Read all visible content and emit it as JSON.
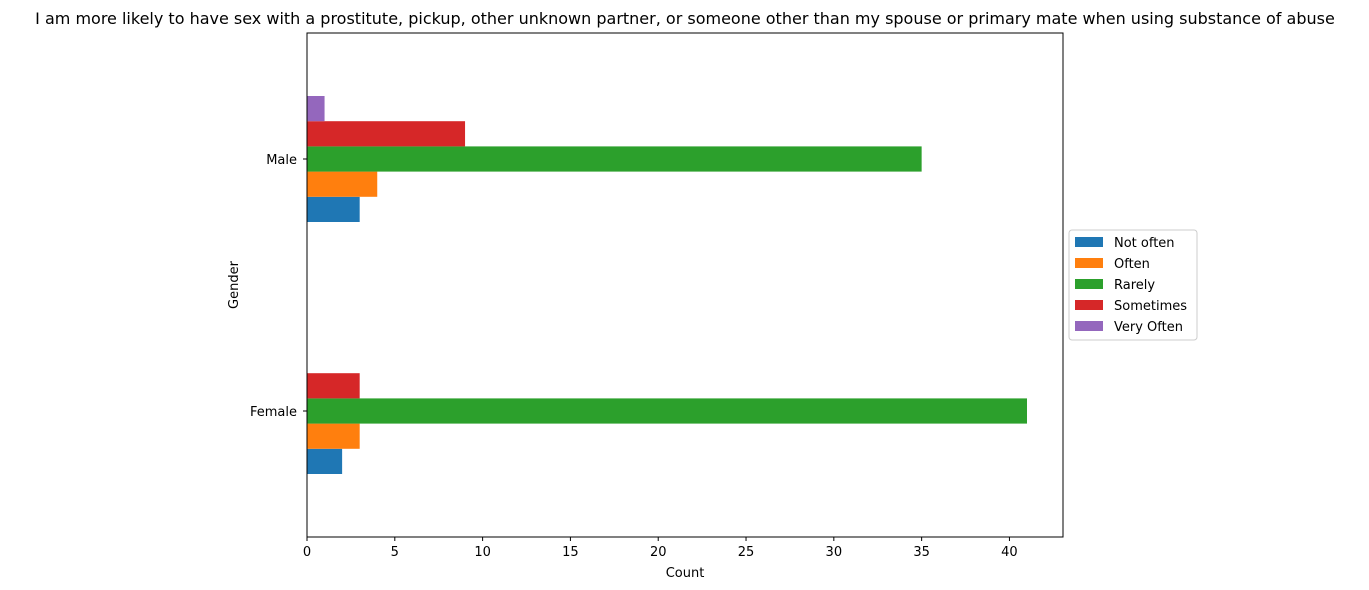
{
  "chart_data": {
    "type": "bar",
    "orientation": "horizontal",
    "title": "I am more likely to have sex with a prostitute, pickup, other unknown partner, or someone other than my spouse or primary mate when using substance of abuse",
    "xlabel": "Count",
    "ylabel": "Gender",
    "categories": [
      "Female",
      "Male"
    ],
    "xlim": [
      0,
      43.05
    ],
    "xticks": [
      0,
      5,
      10,
      15,
      20,
      25,
      30,
      35,
      40
    ],
    "grid": false,
    "legend_position": "center-right outside",
    "series": [
      {
        "name": "Not often",
        "color": "#1f77b4",
        "values": [
          2,
          3
        ]
      },
      {
        "name": "Often",
        "color": "#ff7f0e",
        "values": [
          3,
          4
        ]
      },
      {
        "name": "Rarely",
        "color": "#2ca02c",
        "values": [
          41,
          35
        ]
      },
      {
        "name": "Sometimes",
        "color": "#d62728",
        "values": [
          3,
          9
        ]
      },
      {
        "name": "Very Often",
        "color": "#9467bd",
        "values": [
          0,
          1
        ]
      }
    ]
  }
}
